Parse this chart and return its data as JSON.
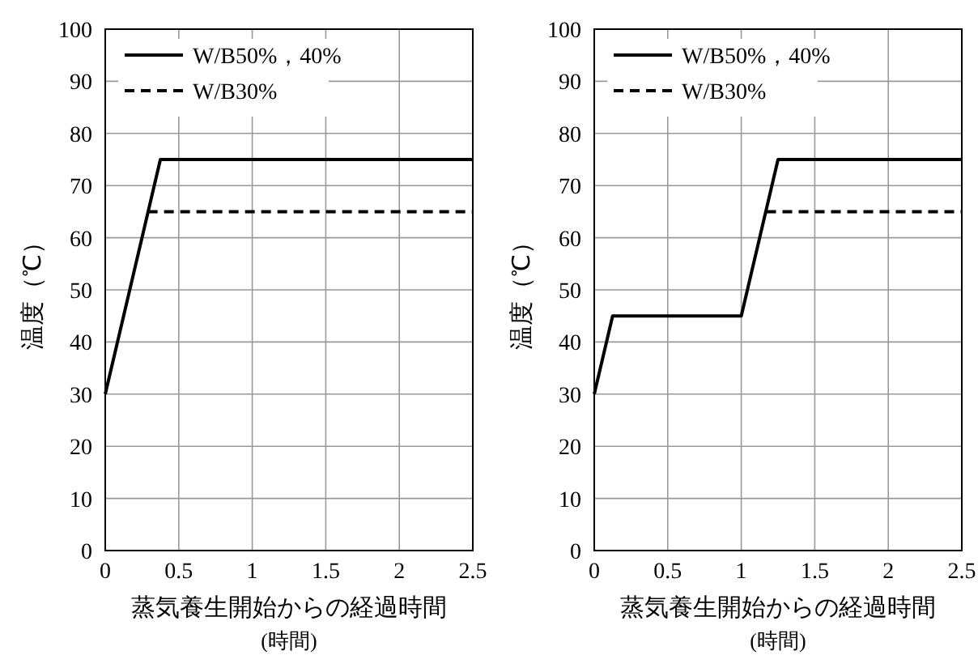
{
  "chart_data": [
    {
      "type": "line",
      "xlabel": "蒸気養生開始からの経過時間\n(時間)",
      "ylabel": "温度（℃）",
      "xlim": [
        0,
        2.5
      ],
      "ylim": [
        0,
        100
      ],
      "xticks": [
        0,
        0.5,
        1,
        1.5,
        2,
        2.5
      ],
      "yticks": [
        0,
        10,
        20,
        30,
        40,
        50,
        60,
        70,
        80,
        90,
        100
      ],
      "grid": true,
      "legend": "top left",
      "marker": "none",
      "series": [
        {
          "name": "W/B50%，40%",
          "color": "#000000",
          "line_style": "solid",
          "x": [
            0,
            0.375,
            2.5
          ],
          "values": [
            30,
            75,
            75
          ]
        },
        {
          "name": "W/B30%",
          "color": "#000000",
          "line_style": "dashed",
          "x": [
            0.29,
            2.5
          ],
          "values": [
            65,
            65
          ]
        }
      ]
    },
    {
      "type": "line",
      "xlabel": "蒸気養生開始からの経過時間\n(時間)",
      "ylabel": "温度（℃）",
      "xlim": [
        0,
        2.5
      ],
      "ylim": [
        0,
        100
      ],
      "xticks": [
        0,
        0.5,
        1,
        1.5,
        2,
        2.5
      ],
      "yticks": [
        0,
        10,
        20,
        30,
        40,
        50,
        60,
        70,
        80,
        90,
        100
      ],
      "grid": true,
      "legend": "top left",
      "marker": "none",
      "series": [
        {
          "name": "W/B50%，40%",
          "color": "#000000",
          "line_style": "solid",
          "x": [
            0,
            0.125,
            1,
            1.25,
            2.5
          ],
          "values": [
            30,
            45,
            45,
            75,
            75
          ]
        },
        {
          "name": "W/B30%",
          "color": "#000000",
          "line_style": "dashed",
          "x": [
            1.17,
            2.5
          ],
          "values": [
            65,
            65
          ]
        }
      ]
    }
  ]
}
